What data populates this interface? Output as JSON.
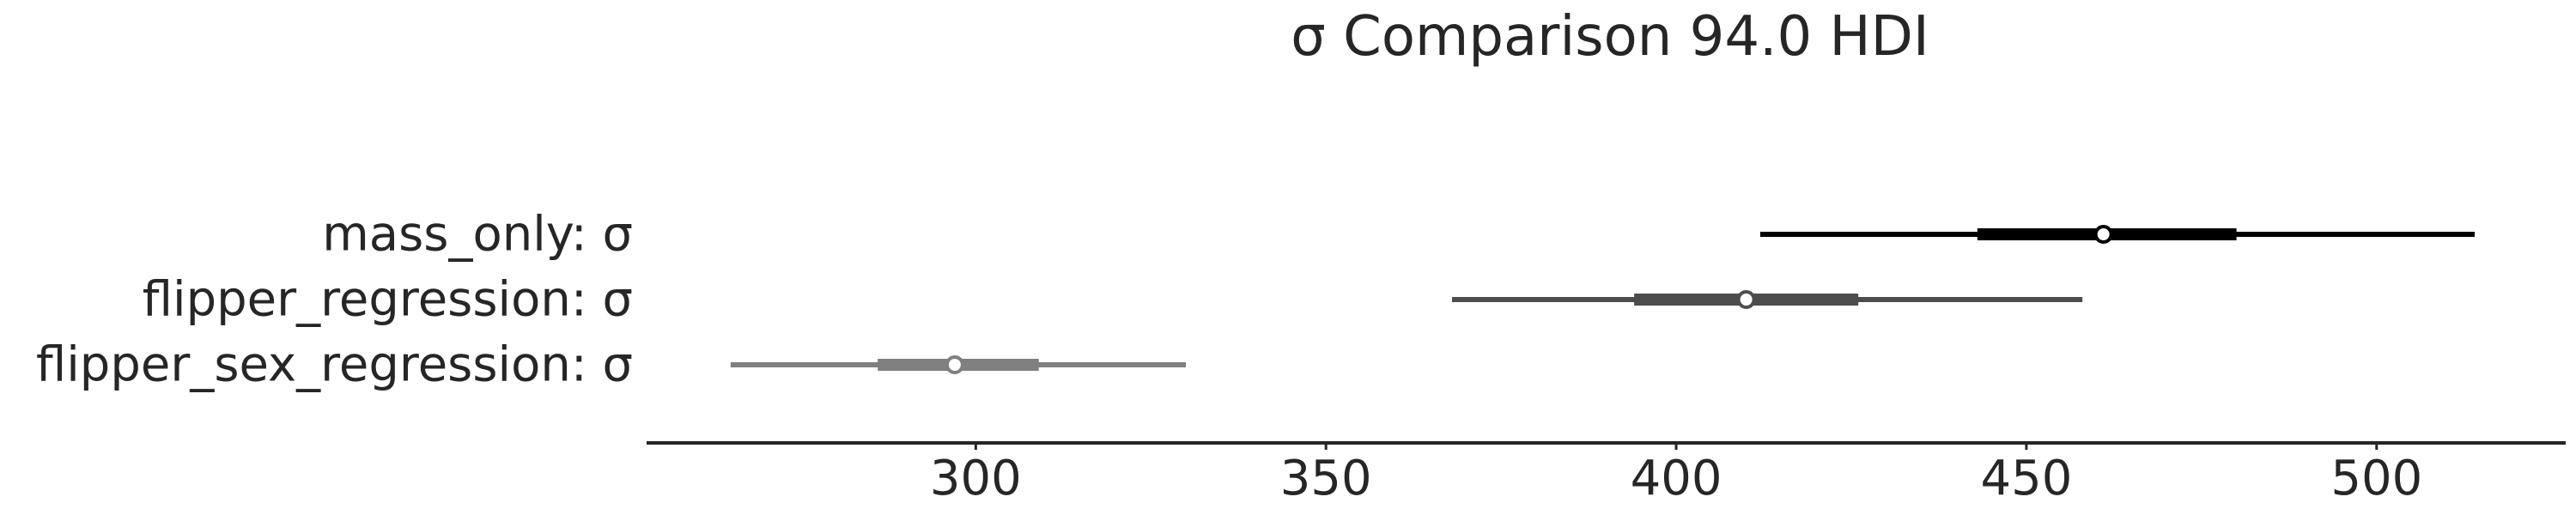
{
  "chart_data": {
    "type": "forest",
    "title": "σ Comparison 94.0 HDI",
    "xlabel": "",
    "ylabel": "",
    "xlim": [
      253,
      527
    ],
    "xticks": [
      300,
      350,
      400,
      450,
      500
    ],
    "grid": false,
    "legend": "none",
    "series": [
      {
        "label": "mass_only: σ",
        "color": "#000000",
        "hdi_94": [
          412,
          514
        ],
        "interquartile": [
          443,
          480
        ],
        "point_estimate": 461
      },
      {
        "label": "flipper_regression: σ",
        "color": "#4d4d4d",
        "hdi_94": [
          368,
          458
        ],
        "interquartile": [
          394,
          426
        ],
        "point_estimate": 410
      },
      {
        "label": "flipper_sex_regression: σ",
        "color": "#808080",
        "hdi_94": [
          265,
          330
        ],
        "interquartile": [
          286,
          309
        ],
        "point_estimate": 297
      }
    ]
  }
}
